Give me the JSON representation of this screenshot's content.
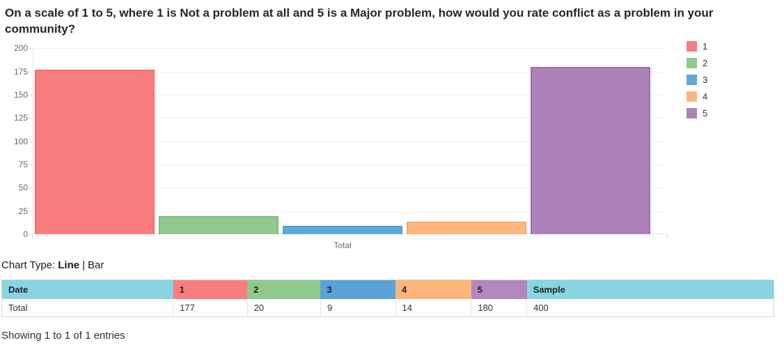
{
  "page": {
    "title": "On a scale of 1 to 5, where 1 is Not a problem at all and 5 is a Major problem, how would you rate conflict as a problem in your community?",
    "footer_text": "Showing 1 to 1 of 1 entries"
  },
  "chart_controls": {
    "label": "Chart Type:",
    "line_option": "Line",
    "divider": "|",
    "bar_option": "Bar"
  },
  "chart_data": {
    "type": "bar",
    "title": "On a scale of 1 to 5, where 1 is Not a problem at all and 5 is a Major problem, how would you rate conflict as a problem in your community?",
    "categories": [
      "Total"
    ],
    "series": [
      {
        "name": "1",
        "values": [
          177
        ],
        "fill": "#f97d7f",
        "border": "#f7696b"
      },
      {
        "name": "2",
        "values": [
          20
        ],
        "fill": "#90c98e",
        "border": "#7dbd7b"
      },
      {
        "name": "3",
        "values": [
          9
        ],
        "fill": "#60a8d8",
        "border": "#4e9fd1"
      },
      {
        "name": "4",
        "values": [
          14
        ],
        "fill": "#fdb77d",
        "border": "#fca55c"
      },
      {
        "name": "5",
        "values": [
          180
        ],
        "fill": "#ab83ba",
        "border": "#9b6fab"
      }
    ],
    "xlabel": "Total",
    "ylabel": "",
    "ylim": [
      0,
      200
    ],
    "yticks": [
      0,
      25,
      50,
      75,
      100,
      125,
      150,
      175,
      200
    ],
    "grid": true,
    "legend_position": "right",
    "legend_entries": [
      "1",
      "2",
      "3",
      "4",
      "5"
    ]
  },
  "table": {
    "columns": [
      {
        "label": "Date",
        "color": "#89d4e3"
      },
      {
        "label": "1",
        "color": "#f97d7f"
      },
      {
        "label": "2",
        "color": "#90c98e"
      },
      {
        "label": "3",
        "color": "#58a3d8"
      },
      {
        "label": "4",
        "color": "#fcb67a"
      },
      {
        "label": "5",
        "color": "#b287be"
      },
      {
        "label": "Sample",
        "color": "#89d4e3"
      }
    ],
    "rows": [
      {
        "cells": [
          "Total",
          "177",
          "20",
          "9",
          "14",
          "180",
          "400"
        ]
      }
    ]
  }
}
